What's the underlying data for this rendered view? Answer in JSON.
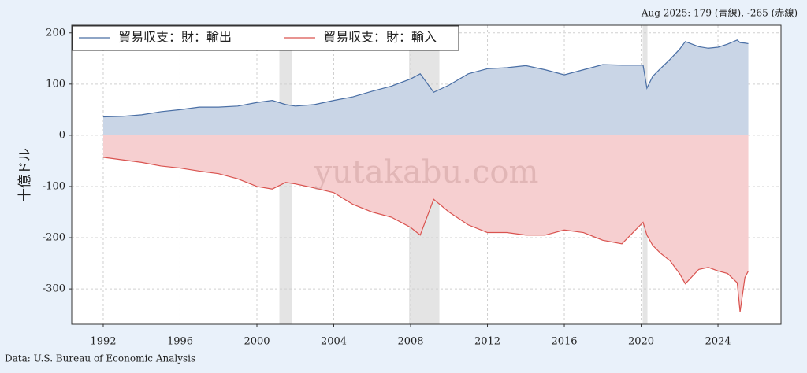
{
  "chart_data": {
    "type": "area",
    "annotation": "Aug 2025: 179 (青線), -265 (赤線)",
    "source": "Data: U.S. Bureau of Economic Analysis",
    "watermark": "yutakabu.com",
    "y_label": "十億ドル",
    "x": [
      1992,
      1993,
      1994,
      1995,
      1996,
      1997,
      1998,
      1999,
      2000,
      2000.8,
      2001.5,
      2002,
      2003,
      2004,
      2005,
      2006,
      2007,
      2008,
      2008.5,
      2009.2,
      2010,
      2011,
      2012,
      2013,
      2014,
      2015,
      2016,
      2017,
      2018,
      2019,
      2020.1,
      2020.3,
      2020.6,
      2021,
      2021.5,
      2022,
      2022.3,
      2023,
      2023.5,
      2024,
      2024.5,
      2025,
      2025.15,
      2025.4,
      2025.58
    ],
    "series": [
      {
        "name": "貿易収支：財：輸出",
        "color": "#4a6fa5",
        "fill": "#c9d5e6",
        "values": [
          36,
          37,
          40,
          46,
          50,
          55,
          55,
          57,
          64,
          68,
          60,
          57,
          60,
          68,
          75,
          86,
          96,
          110,
          120,
          84,
          98,
          120,
          130,
          132,
          136,
          128,
          118,
          128,
          138,
          137,
          137,
          92,
          115,
          130,
          148,
          168,
          183,
          173,
          170,
          172,
          178,
          186,
          181,
          180,
          179
        ]
      },
      {
        "name": "貿易収支：財：輸入",
        "color": "#d9534f",
        "fill": "#f6cfd0",
        "values": [
          -43,
          -48,
          -53,
          -60,
          -64,
          -70,
          -75,
          -85,
          -100,
          -105,
          -92,
          -95,
          -103,
          -112,
          -135,
          -150,
          -160,
          -180,
          -195,
          -125,
          -150,
          -175,
          -190,
          -190,
          -195,
          -195,
          -185,
          -190,
          -205,
          -212,
          -170,
          -195,
          -215,
          -230,
          -245,
          -270,
          -290,
          -262,
          -258,
          -265,
          -270,
          -288,
          -345,
          -278,
          -265
        ]
      }
    ],
    "recessions": [
      [
        2001.17,
        2001.83
      ],
      [
        2007.92,
        2009.5
      ],
      [
        2020.08,
        2020.33
      ]
    ],
    "xlim": [
      1990.36,
      2027.28
    ],
    "ylim": [
      -369,
      215
    ],
    "xticks": [
      1992,
      1996,
      2000,
      2004,
      2008,
      2012,
      2016,
      2020,
      2024
    ],
    "yticks": [
      -300,
      -200,
      -100,
      0,
      100,
      200
    ],
    "grid": true
  }
}
